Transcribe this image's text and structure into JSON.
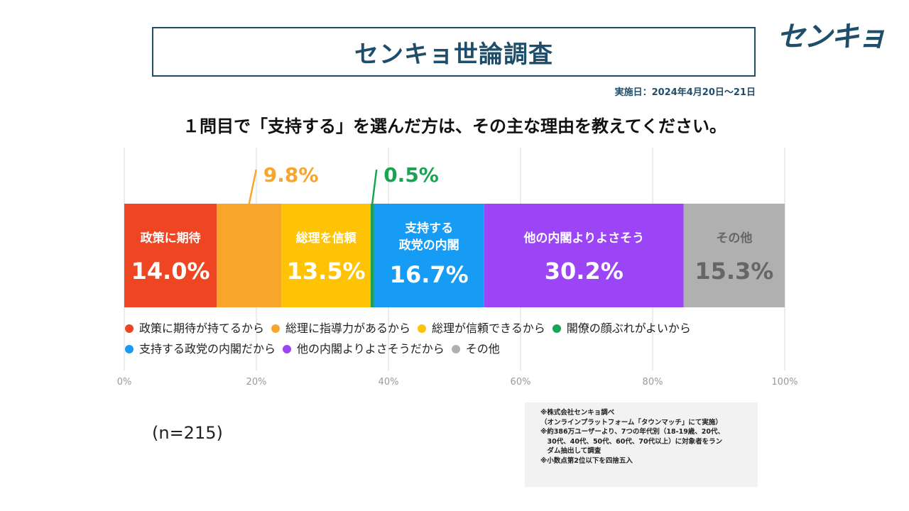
{
  "header": {
    "title": "センキョ世論調査",
    "logo": "センキョ",
    "date": "実施日：2024年4月20日～21日",
    "question": "１問目で「支持する」を選んだ方は、その主な理由を教えてください。"
  },
  "chart_data": {
    "type": "bar",
    "orientation": "horizontal-stacked-100",
    "title": "１問目で「支持する」を選んだ方は、その主な理由を教えてください。",
    "xlim": [
      0,
      100
    ],
    "ticks": [
      "0%",
      "20%",
      "40%",
      "60%",
      "80%",
      "100%"
    ],
    "tick_values": [
      0,
      20,
      40,
      60,
      80,
      100
    ],
    "segments": [
      {
        "short": "政策に期待",
        "legend": "政策に期待が持てるから",
        "value": 14.0,
        "label": "14.0%",
        "color": "#ee4523"
      },
      {
        "short": "",
        "legend": "総理に指導力があるから",
        "value": 9.8,
        "label": "9.8%",
        "color": "#f7a62b"
      },
      {
        "short": "総理を信頼",
        "legend": "総理が信頼できるから",
        "value": 13.5,
        "label": "13.5%",
        "color": "#fec304"
      },
      {
        "short": "",
        "legend": "閣僚の顔ぶれがよいから",
        "value": 0.5,
        "label": "0.5%",
        "color": "#1aa451"
      },
      {
        "short": "支持する\n政党の内閣",
        "legend": "支持する政党の内閣だから",
        "value": 16.7,
        "label": "16.7%",
        "color": "#169cf5"
      },
      {
        "short": "他の内閣よりよさそう",
        "legend": "他の内閣よりよさそうだから",
        "value": 30.2,
        "label": "30.2%",
        "color": "#9c45f7"
      },
      {
        "short": "その他",
        "legend": "その他",
        "value": 15.3,
        "label": "15.3%",
        "color": "#b0b0b0"
      }
    ],
    "callouts": [
      1,
      3
    ]
  },
  "sample": "(n=215)",
  "notes": [
    "※株式会社センキョ調べ",
    "（オンラインプラットフォーム「タウンマッチ」にて実施）",
    "※約386万ユーザーより、7つの年代別（18-19歳、20代、",
    "　30代、40代、50代、60代、70代以上）に対象者をラン",
    "　ダム抽出して調査",
    "※小数点第2位以下を四捨五入"
  ]
}
